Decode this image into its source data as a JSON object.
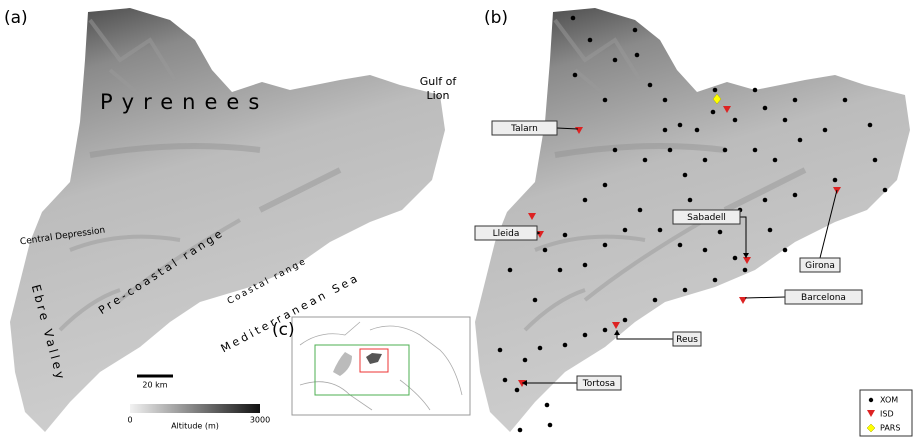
{
  "panel_a": {
    "label": "(a)",
    "regions": {
      "pyrenees": "Pyrenees",
      "gulf": "Gulf of Lion",
      "central_depression": "Central Depression",
      "pre_coastal": "Pre-coastal range",
      "coastal": "Coastal range",
      "sea": "Mediterranean Sea",
      "ebre": "Ebre Valley"
    },
    "scale_bar": "20 km",
    "colorbar": {
      "min": "0",
      "max": "3000",
      "label": "Altitude (m)"
    }
  },
  "panel_b": {
    "label": "(b)",
    "stations": [
      "Talarn",
      "Lleida",
      "Sabadell",
      "Girona",
      "Barcelona",
      "Reus",
      "Tortosa"
    ],
    "legend": [
      "XOM",
      "ISD",
      "PARS"
    ]
  },
  "panel_c": {
    "label": "(c)"
  }
}
